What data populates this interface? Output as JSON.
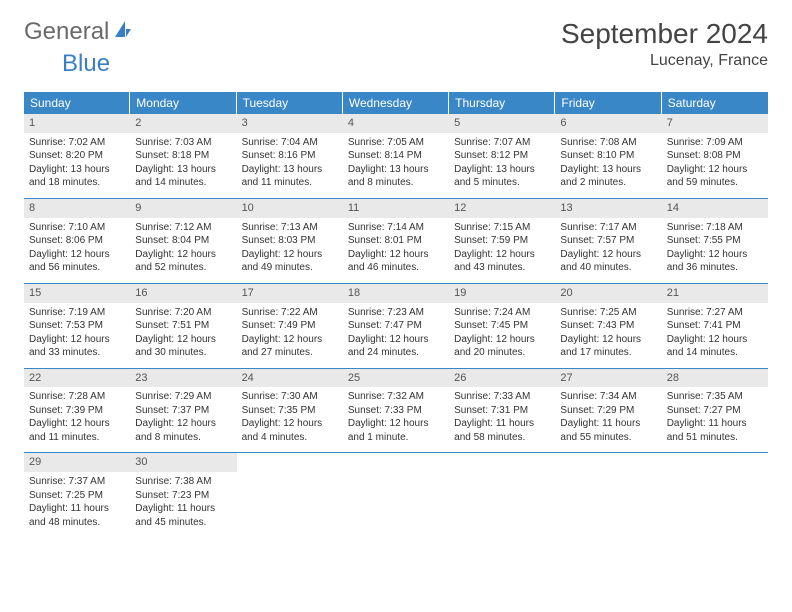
{
  "logo": {
    "text1": "General",
    "text2": "Blue"
  },
  "title": "September 2024",
  "location": "Lucenay, France",
  "colors": {
    "headerBg": "#3a87c7",
    "dayNumBg": "#e9e9e9",
    "logoBlue": "#3a7fc4",
    "logoGray": "#6a6a6a"
  },
  "dow": [
    "Sunday",
    "Monday",
    "Tuesday",
    "Wednesday",
    "Thursday",
    "Friday",
    "Saturday"
  ],
  "weeks": [
    [
      {
        "n": "1",
        "sr": "Sunrise: 7:02 AM",
        "ss": "Sunset: 8:20 PM",
        "dl": "Daylight: 13 hours and 18 minutes."
      },
      {
        "n": "2",
        "sr": "Sunrise: 7:03 AM",
        "ss": "Sunset: 8:18 PM",
        "dl": "Daylight: 13 hours and 14 minutes."
      },
      {
        "n": "3",
        "sr": "Sunrise: 7:04 AM",
        "ss": "Sunset: 8:16 PM",
        "dl": "Daylight: 13 hours and 11 minutes."
      },
      {
        "n": "4",
        "sr": "Sunrise: 7:05 AM",
        "ss": "Sunset: 8:14 PM",
        "dl": "Daylight: 13 hours and 8 minutes."
      },
      {
        "n": "5",
        "sr": "Sunrise: 7:07 AM",
        "ss": "Sunset: 8:12 PM",
        "dl": "Daylight: 13 hours and 5 minutes."
      },
      {
        "n": "6",
        "sr": "Sunrise: 7:08 AM",
        "ss": "Sunset: 8:10 PM",
        "dl": "Daylight: 13 hours and 2 minutes."
      },
      {
        "n": "7",
        "sr": "Sunrise: 7:09 AM",
        "ss": "Sunset: 8:08 PM",
        "dl": "Daylight: 12 hours and 59 minutes."
      }
    ],
    [
      {
        "n": "8",
        "sr": "Sunrise: 7:10 AM",
        "ss": "Sunset: 8:06 PM",
        "dl": "Daylight: 12 hours and 56 minutes."
      },
      {
        "n": "9",
        "sr": "Sunrise: 7:12 AM",
        "ss": "Sunset: 8:04 PM",
        "dl": "Daylight: 12 hours and 52 minutes."
      },
      {
        "n": "10",
        "sr": "Sunrise: 7:13 AM",
        "ss": "Sunset: 8:03 PM",
        "dl": "Daylight: 12 hours and 49 minutes."
      },
      {
        "n": "11",
        "sr": "Sunrise: 7:14 AM",
        "ss": "Sunset: 8:01 PM",
        "dl": "Daylight: 12 hours and 46 minutes."
      },
      {
        "n": "12",
        "sr": "Sunrise: 7:15 AM",
        "ss": "Sunset: 7:59 PM",
        "dl": "Daylight: 12 hours and 43 minutes."
      },
      {
        "n": "13",
        "sr": "Sunrise: 7:17 AM",
        "ss": "Sunset: 7:57 PM",
        "dl": "Daylight: 12 hours and 40 minutes."
      },
      {
        "n": "14",
        "sr": "Sunrise: 7:18 AM",
        "ss": "Sunset: 7:55 PM",
        "dl": "Daylight: 12 hours and 36 minutes."
      }
    ],
    [
      {
        "n": "15",
        "sr": "Sunrise: 7:19 AM",
        "ss": "Sunset: 7:53 PM",
        "dl": "Daylight: 12 hours and 33 minutes."
      },
      {
        "n": "16",
        "sr": "Sunrise: 7:20 AM",
        "ss": "Sunset: 7:51 PM",
        "dl": "Daylight: 12 hours and 30 minutes."
      },
      {
        "n": "17",
        "sr": "Sunrise: 7:22 AM",
        "ss": "Sunset: 7:49 PM",
        "dl": "Daylight: 12 hours and 27 minutes."
      },
      {
        "n": "18",
        "sr": "Sunrise: 7:23 AM",
        "ss": "Sunset: 7:47 PM",
        "dl": "Daylight: 12 hours and 24 minutes."
      },
      {
        "n": "19",
        "sr": "Sunrise: 7:24 AM",
        "ss": "Sunset: 7:45 PM",
        "dl": "Daylight: 12 hours and 20 minutes."
      },
      {
        "n": "20",
        "sr": "Sunrise: 7:25 AM",
        "ss": "Sunset: 7:43 PM",
        "dl": "Daylight: 12 hours and 17 minutes."
      },
      {
        "n": "21",
        "sr": "Sunrise: 7:27 AM",
        "ss": "Sunset: 7:41 PM",
        "dl": "Daylight: 12 hours and 14 minutes."
      }
    ],
    [
      {
        "n": "22",
        "sr": "Sunrise: 7:28 AM",
        "ss": "Sunset: 7:39 PM",
        "dl": "Daylight: 12 hours and 11 minutes."
      },
      {
        "n": "23",
        "sr": "Sunrise: 7:29 AM",
        "ss": "Sunset: 7:37 PM",
        "dl": "Daylight: 12 hours and 8 minutes."
      },
      {
        "n": "24",
        "sr": "Sunrise: 7:30 AM",
        "ss": "Sunset: 7:35 PM",
        "dl": "Daylight: 12 hours and 4 minutes."
      },
      {
        "n": "25",
        "sr": "Sunrise: 7:32 AM",
        "ss": "Sunset: 7:33 PM",
        "dl": "Daylight: 12 hours and 1 minute."
      },
      {
        "n": "26",
        "sr": "Sunrise: 7:33 AM",
        "ss": "Sunset: 7:31 PM",
        "dl": "Daylight: 11 hours and 58 minutes."
      },
      {
        "n": "27",
        "sr": "Sunrise: 7:34 AM",
        "ss": "Sunset: 7:29 PM",
        "dl": "Daylight: 11 hours and 55 minutes."
      },
      {
        "n": "28",
        "sr": "Sunrise: 7:35 AM",
        "ss": "Sunset: 7:27 PM",
        "dl": "Daylight: 11 hours and 51 minutes."
      }
    ],
    [
      {
        "n": "29",
        "sr": "Sunrise: 7:37 AM",
        "ss": "Sunset: 7:25 PM",
        "dl": "Daylight: 11 hours and 48 minutes."
      },
      {
        "n": "30",
        "sr": "Sunrise: 7:38 AM",
        "ss": "Sunset: 7:23 PM",
        "dl": "Daylight: 11 hours and 45 minutes."
      },
      null,
      null,
      null,
      null,
      null
    ]
  ]
}
